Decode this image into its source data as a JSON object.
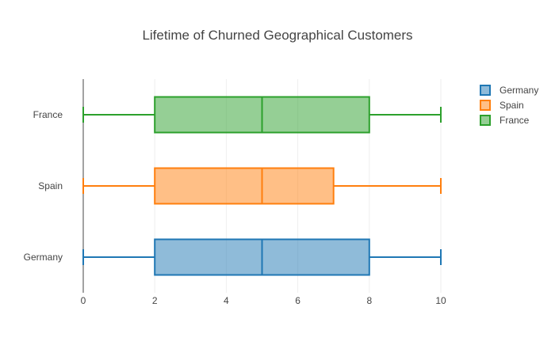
{
  "chart_data": {
    "type": "box",
    "orientation": "horizontal",
    "title": "Lifetime of Churned Geographical Customers",
    "xlabel": "",
    "ylabel": "",
    "xlim": [
      0,
      10
    ],
    "x_ticks": [
      0,
      2,
      4,
      6,
      8,
      10
    ],
    "categories": [
      "Germany",
      "Spain",
      "France"
    ],
    "grid": true,
    "legend_position": "top-right",
    "series": [
      {
        "name": "Germany",
        "color": "#1f77b4",
        "min": 0,
        "q1": 2,
        "median": 5,
        "q3": 8,
        "max": 10
      },
      {
        "name": "Spain",
        "color": "#ff7f0e",
        "min": 0,
        "q1": 2,
        "median": 5,
        "q3": 7,
        "max": 10
      },
      {
        "name": "France",
        "color": "#2ca02c",
        "min": 0,
        "q1": 2,
        "median": 5,
        "q3": 8,
        "max": 10
      }
    ]
  }
}
